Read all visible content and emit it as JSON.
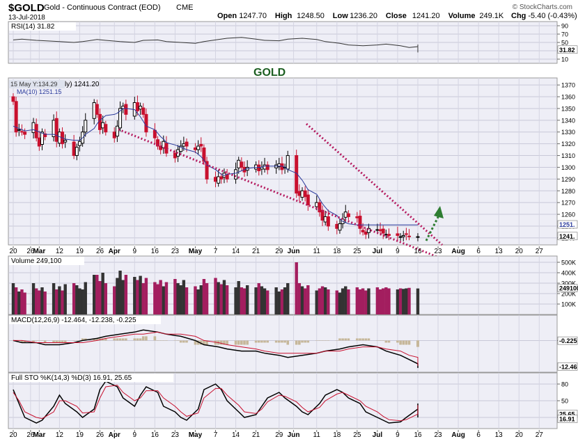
{
  "header": {
    "symbol": "$GOLD",
    "name": "Gold - Continuous Contract (EOD)",
    "exchange": "CME",
    "date": "13-Jul-2018",
    "brand": "© StockCharts.com",
    "ohlc": [
      {
        "label": "Open",
        "value": "1247.70"
      },
      {
        "label": "High",
        "value": "1248.50"
      },
      {
        "label": "Low",
        "value": "1236.20"
      },
      {
        "label": "Close",
        "value": "1241.20"
      },
      {
        "label": "Volume",
        "value": "249.1K"
      },
      {
        "label": "Chg",
        "value": "-5.40 (-0.43%)"
      }
    ]
  },
  "annotation": {
    "gold_label": "GOLD",
    "colors": {
      "trendline": "#b5195e",
      "arrow": "#2e7d32",
      "gold_text": "#1b5e20"
    }
  },
  "colors": {
    "up": "#000000",
    "down": "#c8102e",
    "volume_up": "#333333",
    "volume_down": "#a31e5f",
    "ma": "#2a3a9c",
    "panel_bg": "#eeeef6"
  },
  "chart_data": [
    {
      "type": "line",
      "panel": "rsi",
      "legend": "RSI(14) 31.82",
      "ylim": [
        0,
        100
      ],
      "yticks": [
        {
          "v": 90,
          "label": "90"
        },
        {
          "v": 70,
          "label": "70"
        },
        {
          "v": 50,
          "label": "50"
        },
        {
          "v": 30,
          "label": "30"
        },
        {
          "v": 10,
          "label": "10"
        }
      ],
      "last_label": "31.82",
      "sample_every": 3,
      "values": [
        56,
        58,
        55,
        54,
        52,
        50,
        52,
        57,
        55,
        52,
        50,
        55,
        56,
        52,
        50,
        48,
        52,
        57,
        60,
        62,
        58,
        55,
        54,
        58,
        60,
        57,
        52,
        48,
        44,
        42,
        44,
        46,
        42,
        38,
        40,
        44,
        42,
        36,
        38,
        34,
        36,
        38,
        40,
        42,
        44,
        43,
        45,
        36,
        28,
        30,
        28,
        26,
        30,
        32,
        34,
        35,
        33,
        33,
        32
      ]
    },
    {
      "type": "candlestick",
      "panel": "price",
      "tooltip": "15 May Y:134.29",
      "legend_main": "ly) 1241.20",
      "legend_ma": "MA(10) 1251.15",
      "ylim": [
        1234,
        1376
      ],
      "yticks": [
        1370,
        1360,
        1350,
        1340,
        1330,
        1320,
        1310,
        1300,
        1290,
        1280,
        1270,
        1260,
        1250,
        1240
      ],
      "last_labels": [
        "1251.",
        "1241."
      ],
      "x_labels": [
        "20",
        "26",
        "Mar",
        "12",
        "19",
        "26",
        "Apr",
        "9",
        "16",
        "23",
        "May",
        "7",
        "14",
        "21",
        "29",
        "Jun",
        "11",
        "18",
        "25",
        "Jul",
        "9",
        "16",
        "23",
        "Aug",
        "6",
        "13",
        "20",
        "27"
      ],
      "x_label_days": [
        0,
        6,
        9,
        16,
        23,
        30,
        35,
        42,
        49,
        56,
        63,
        70,
        77,
        84,
        92,
        97,
        105,
        112,
        119,
        126,
        133,
        140,
        147,
        154,
        161,
        168,
        175,
        182
      ],
      "trading_days": [
        0,
        1,
        2,
        3,
        4,
        7,
        8,
        9,
        10,
        11,
        14,
        15,
        16,
        17,
        18,
        21,
        22,
        23,
        24,
        25,
        28,
        29,
        30,
        31,
        32,
        35,
        36,
        37,
        38,
        39,
        42,
        43,
        44,
        45,
        46,
        49,
        50,
        51,
        52,
        53,
        56,
        57,
        58,
        59,
        60,
        63,
        64,
        65,
        66,
        67,
        70,
        71,
        72,
        73,
        74,
        77,
        78,
        79,
        80,
        81,
        84,
        85,
        86,
        87,
        88,
        91,
        92,
        93,
        94,
        95,
        98,
        99,
        100,
        101,
        102,
        105,
        106,
        107,
        108,
        109,
        112,
        113,
        114,
        115,
        116,
        119,
        120,
        121,
        122,
        123,
        126,
        127,
        128,
        129,
        130,
        133,
        134,
        135,
        136,
        137,
        140
      ],
      "closes": [
        1356,
        1330,
        1332,
        1330,
        1328,
        1338,
        1325,
        1318,
        1330,
        1326,
        1340,
        1322,
        1330,
        1320,
        1323,
        1310,
        1317,
        1322,
        1330,
        1340,
        1355,
        1345,
        1332,
        1338,
        1330,
        1325,
        1335,
        1350,
        1352,
        1345,
        1355,
        1348,
        1352,
        1345,
        1330,
        1325,
        1318,
        1315,
        1322,
        1312,
        1308,
        1315,
        1318,
        1320,
        1318,
        1315,
        1318,
        1318,
        1305,
        1290,
        1288,
        1292,
        1290,
        1295,
        1290,
        1298,
        1306,
        1300,
        1296,
        1300,
        1302,
        1297,
        1300,
        1302,
        1298,
        1302,
        1303,
        1298,
        1300,
        1310,
        1278,
        1276,
        1280,
        1275,
        1268,
        1270,
        1262,
        1255,
        1258,
        1250,
        1248,
        1252,
        1256,
        1262,
        1258,
        1257,
        1248,
        1245,
        1243,
        1248,
        1247,
        1246,
        1244,
        1243,
        1242,
        1242,
        1241,
        1242,
        1243,
        1241,
        1241
      ],
      "ma": [
        1335,
        1334,
        1333,
        1332,
        1331,
        1332,
        1331,
        1330,
        1329,
        1328,
        1328,
        1327,
        1326,
        1325,
        1324,
        1323,
        1323,
        1323,
        1325,
        1328,
        1333,
        1337,
        1340,
        1342,
        1344,
        1345,
        1346,
        1348,
        1350,
        1350,
        1349,
        1346,
        1343,
        1339,
        1335,
        1332,
        1329,
        1326,
        1324,
        1321,
        1319,
        1318,
        1317,
        1316,
        1315,
        1313,
        1311,
        1309,
        1306,
        1302,
        1298,
        1296,
        1294,
        1293,
        1294,
        1295,
        1296,
        1297,
        1298,
        1299,
        1300,
        1300,
        1300,
        1301,
        1301,
        1301,
        1301,
        1301,
        1300,
        1298,
        1295,
        1292,
        1289,
        1285,
        1281,
        1277,
        1273,
        1269,
        1266,
        1263,
        1259,
        1256,
        1254,
        1253,
        1252,
        1251,
        1251,
        1251,
        1251,
        1251,
        1251,
        1251,
        1251,
        1251,
        1251,
        1251,
        1251,
        1251,
        1251,
        1251,
        1251
      ]
    },
    {
      "type": "bar",
      "panel": "volume",
      "legend": "Volume 249,100",
      "ylim": [
        0,
        560000
      ],
      "yticks": [
        {
          "v": 500000,
          "label": "500K"
        },
        {
          "v": 400000,
          "label": "400K"
        },
        {
          "v": 300000,
          "label": "300K"
        },
        {
          "v": 200000,
          "label": "200K"
        },
        {
          "v": 100000,
          "label": "100K"
        }
      ],
      "last_label": "249100",
      "values": [
        300000,
        260000,
        220000,
        240000,
        210000,
        300000,
        250000,
        230000,
        260000,
        220000,
        300000,
        240000,
        270000,
        230000,
        290000,
        300000,
        280000,
        250000,
        240000,
        310000,
        380000,
        380000,
        320000,
        400000,
        300000,
        270000,
        350000,
        420000,
        330000,
        380000,
        360000,
        330000,
        370000,
        300000,
        350000,
        310000,
        290000,
        330000,
        270000,
        310000,
        340000,
        300000,
        280000,
        330000,
        260000,
        270000,
        240000,
        280000,
        340000,
        300000,
        350000,
        310000,
        290000,
        330000,
        280000,
        260000,
        320000,
        260000,
        250000,
        280000,
        260000,
        300000,
        270000,
        250000,
        230000,
        260000,
        220000,
        240000,
        260000,
        300000,
        500000,
        300000,
        270000,
        250000,
        280000,
        230000,
        250000,
        270000,
        260000,
        240000,
        230000,
        210000,
        250000,
        270000,
        240000,
        260000,
        240000,
        250000,
        230000,
        250000,
        260000,
        240000,
        250000,
        260000,
        250000,
        240000,
        250000,
        245000,
        250000,
        255000,
        249100
      ]
    },
    {
      "type": "line",
      "panel": "macd",
      "legend": "MACD(12,26,9) -12.464, -12.238, -0.225",
      "ylim": [
        -15,
        12
      ],
      "yticks": [
        {
          "v": 0,
          "label": "0"
        }
      ],
      "last_labels": [
        "-0.225",
        "-12.46"
      ],
      "sample_every": 3,
      "macd": [
        0,
        -1,
        -1,
        -2,
        -2,
        -1,
        0,
        1,
        2,
        3,
        4,
        5,
        4,
        3,
        2,
        0,
        -2,
        -3,
        -4,
        -5,
        -5,
        -6,
        -7,
        -8,
        -7,
        -6,
        -5,
        -4,
        -3,
        -2,
        -3,
        -5,
        -7,
        -9,
        -11,
        -12,
        -13,
        -12,
        -12
      ],
      "signal": [
        0,
        0,
        -1,
        -1,
        -1,
        -1,
        -1,
        0,
        1,
        2,
        3,
        3,
        4,
        3,
        3,
        2,
        0,
        -1,
        -2,
        -3,
        -4,
        -5,
        -6,
        -6,
        -6,
        -6,
        -5,
        -5,
        -4,
        -3,
        -3,
        -4,
        -5,
        -7,
        -8,
        -9,
        -10,
        -11,
        -12
      ]
    },
    {
      "type": "line",
      "panel": "sto",
      "legend": "Full STO %K(14,3) %D(3) 16.91, 25.65",
      "ylim": [
        0,
        100
      ],
      "yticks": [
        {
          "v": 80,
          "label": "80"
        },
        {
          "v": 50,
          "label": "50"
        },
        {
          "v": 20,
          "label": "20"
        }
      ],
      "last_labels": [
        "25.65",
        "16.91"
      ],
      "sample_every": 2,
      "k": [
        70,
        45,
        20,
        10,
        15,
        40,
        60,
        45,
        30,
        20,
        35,
        70,
        85,
        75,
        55,
        40,
        60,
        75,
        65,
        40,
        30,
        20,
        15,
        35,
        70,
        80,
        70,
        50,
        30,
        20,
        25,
        40,
        55,
        65,
        55,
        40,
        30,
        25,
        45,
        60,
        70,
        65,
        55,
        45,
        30,
        20,
        15,
        10,
        12,
        20,
        35,
        45,
        40,
        30,
        20
      ],
      "d": [
        65,
        50,
        30,
        20,
        18,
        30,
        50,
        50,
        40,
        28,
        30,
        55,
        75,
        78,
        65,
        50,
        55,
        68,
        68,
        55,
        40,
        30,
        22,
        28,
        55,
        72,
        72,
        60,
        42,
        30,
        27,
        35,
        48,
        60,
        58,
        48,
        38,
        30,
        38,
        50,
        62,
        65,
        60,
        50,
        40,
        30,
        22,
        16,
        14,
        16,
        26,
        38,
        42,
        36,
        26
      ]
    }
  ]
}
